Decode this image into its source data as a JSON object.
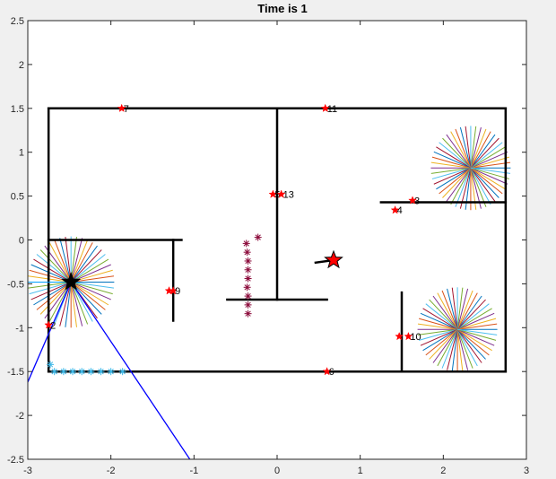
{
  "chart_data": {
    "type": "scatter",
    "title": "Time is 1",
    "xlim": [
      -3,
      3
    ],
    "ylim": [
      -2.5,
      2.5
    ],
    "x_ticks": [
      "-3",
      "-2",
      "-1",
      "0",
      "1",
      "2",
      "3"
    ],
    "y_ticks": [
      "2.5",
      "2",
      "1.5",
      "1",
      "0.5",
      "0",
      "-0.5",
      "-1",
      "-1.5",
      "-2",
      "-2.5"
    ],
    "walls": [
      [
        [
          -2.75,
          1.5
        ],
        [
          2.75,
          1.5
        ]
      ],
      [
        [
          -2.75,
          -1.5
        ],
        [
          2.75,
          -1.5
        ]
      ],
      [
        [
          -2.75,
          -1.5
        ],
        [
          -2.75,
          1.5
        ]
      ],
      [
        [
          2.75,
          -1.5
        ],
        [
          2.75,
          1.5
        ]
      ],
      [
        [
          0,
          1.5
        ],
        [
          0,
          -0.68
        ]
      ],
      [
        [
          -0.6,
          -0.68
        ],
        [
          0.6,
          -0.68
        ]
      ],
      [
        [
          -2.75,
          0
        ],
        [
          -1.15,
          0
        ]
      ],
      [
        [
          -1.25,
          0
        ],
        [
          -1.25,
          -0.92
        ]
      ],
      [
        [
          1.25,
          0.43
        ],
        [
          2.75,
          0.43
        ]
      ],
      [
        [
          1.5,
          -0.6
        ],
        [
          1.5,
          -1.5
        ]
      ]
    ],
    "landmarks": [
      {
        "x": -1.87,
        "y": 1.5,
        "label": "7"
      },
      {
        "x": 0.58,
        "y": 1.5,
        "label": "11"
      },
      {
        "x": -0.05,
        "y": 0.52,
        "label": "5"
      },
      {
        "x": 0.05,
        "y": 0.52,
        "label": "13"
      },
      {
        "x": 1.63,
        "y": 0.45,
        "label": "3"
      },
      {
        "x": 1.42,
        "y": 0.34,
        "label": "4"
      },
      {
        "x": -1.3,
        "y": -0.58,
        "label": ""
      },
      {
        "x": -1.25,
        "y": -0.58,
        "label": "9"
      },
      {
        "x": -2.75,
        "y": -0.97,
        "label": "2"
      },
      {
        "x": 1.47,
        "y": -1.1,
        "label": ""
      },
      {
        "x": 1.58,
        "y": -1.1,
        "label": "10"
      },
      {
        "x": 0.6,
        "y": -1.5,
        "label": "6"
      }
    ],
    "robot_marker": {
      "x": -2.48,
      "y": -0.48
    },
    "target_marker": {
      "x": 0.68,
      "y": -0.23
    },
    "target_heading": [
      [
        0.45,
        -0.26
      ],
      [
        0.68,
        -0.23
      ]
    ],
    "robot_fov": [
      [
        -2.48,
        -0.48
      ],
      [
        -3.0,
        -1.62
      ],
      [
        -2.48,
        -0.48
      ],
      [
        -1.05,
        -2.5
      ]
    ],
    "robot_ray": [
      [
        -2.48,
        -0.48
      ],
      [
        -3.0,
        -0.48
      ]
    ],
    "sensor_bursts": [
      {
        "x": -2.48,
        "y": -0.48,
        "r": 0.52
      },
      {
        "x": 2.33,
        "y": 0.82,
        "r": 0.48
      },
      {
        "x": 2.17,
        "y": -1.02,
        "r": 0.48
      }
    ],
    "path_dark": [
      {
        "x": -0.23,
        "y": 0.03
      },
      {
        "x": -0.37,
        "y": -0.04
      },
      {
        "x": -0.36,
        "y": -0.14
      },
      {
        "x": -0.35,
        "y": -0.24
      },
      {
        "x": -0.35,
        "y": -0.34
      },
      {
        "x": -0.35,
        "y": -0.44
      },
      {
        "x": -0.36,
        "y": -0.54
      },
      {
        "x": -0.35,
        "y": -0.64
      },
      {
        "x": -0.35,
        "y": -0.74
      },
      {
        "x": -0.35,
        "y": -0.84
      }
    ],
    "path_cyan": [
      {
        "x": -2.73,
        "y": -1.42
      },
      {
        "x": -2.68,
        "y": -1.5
      },
      {
        "x": -2.57,
        "y": -1.5
      },
      {
        "x": -2.46,
        "y": -1.5
      },
      {
        "x": -2.35,
        "y": -1.5
      },
      {
        "x": -2.24,
        "y": -1.5
      },
      {
        "x": -2.12,
        "y": -1.5
      },
      {
        "x": -2.0,
        "y": -1.5
      },
      {
        "x": -1.86,
        "y": -1.5
      }
    ],
    "colors": {
      "walls": "#000000",
      "landmark": "#ff0000",
      "fov": "#0000ff",
      "ray": "#00a0ff",
      "path_dark": "#8b0a3a",
      "path_cyan": "#3db8e8"
    }
  }
}
